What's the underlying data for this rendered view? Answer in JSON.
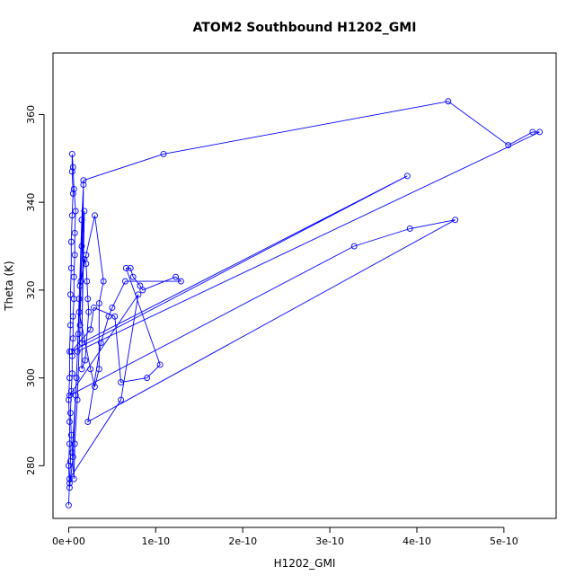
{
  "chart_data": {
    "type": "line",
    "title": "ATOM2 Southbound H1202_GMI",
    "xlabel": "H1202_GMI",
    "ylabel": "Theta (K)",
    "xlim": [
      -1.8e-11,
      5.6e-10
    ],
    "ylim": [
      268,
      374
    ],
    "x_ticks": [
      0,
      1e-10,
      2e-10,
      3e-10,
      4e-10,
      5e-10
    ],
    "x_tick_labels": [
      "0e+00",
      "1e-10",
      "2e-10",
      "3e-10",
      "4e-10",
      "5e-10"
    ],
    "y_ticks": [
      280,
      300,
      320,
      340,
      360
    ],
    "y_tick_labels": [
      "280",
      "300",
      "320",
      "340",
      "360"
    ],
    "grid": false,
    "series": [
      {
        "color": "#0000ff",
        "marker": "open-circle",
        "points": [
          [
            0,
            271
          ],
          [
            1e-12,
            276
          ],
          [
            2e-12,
            281
          ],
          [
            3e-12,
            287
          ],
          [
            2e-12,
            292
          ],
          [
            3e-12,
            297
          ],
          [
            4e-12,
            301
          ],
          [
            4e-12,
            305
          ],
          [
            5e-12,
            309
          ],
          [
            5e-12,
            314
          ],
          [
            6e-12,
            318
          ],
          [
            6e-12,
            323
          ],
          [
            7e-12,
            328
          ],
          [
            7e-12,
            333
          ],
          [
            8e-12,
            338
          ],
          [
            6e-12,
            343
          ],
          [
            5e-12,
            348
          ],
          [
            4e-12,
            351
          ],
          [
            4e-12,
            347
          ],
          [
            5e-12,
            342
          ],
          [
            4e-12,
            337
          ],
          [
            3e-12,
            331
          ],
          [
            3e-12,
            325
          ],
          [
            2e-12,
            319
          ],
          [
            2e-12,
            312
          ],
          [
            1e-12,
            306
          ],
          [
            1e-12,
            300
          ],
          [
            0,
            295
          ],
          [
            1e-12,
            290
          ],
          [
            1e-12,
            285
          ],
          [
            0,
            280
          ],
          [
            1e-12,
            275
          ],
          [
            5e-12,
            282
          ],
          [
            9e-12,
            300
          ],
          [
            1.2e-11,
            318
          ],
          [
            1.5e-11,
            336
          ],
          [
            1.7e-11,
            344
          ],
          [
            1.5e-11,
            330
          ],
          [
            1.3e-11,
            312
          ],
          [
            1e-11,
            295
          ],
          [
            7e-12,
            285
          ],
          [
            6e-12,
            277
          ],
          [
            4e-12,
            283
          ],
          [
            8e-12,
            296
          ],
          [
            1.1e-11,
            310
          ],
          [
            1.4e-11,
            322
          ],
          [
            1.8e-11,
            327
          ],
          [
            2e-11,
            326
          ],
          [
            2.1e-11,
            322
          ],
          [
            2.2e-11,
            318
          ],
          [
            2.3e-11,
            315
          ],
          [
            1.9e-11,
            304
          ],
          [
            1.5e-11,
            302
          ],
          [
            1.7e-11,
            345
          ],
          [
            1.09e-10,
            351
          ],
          [
            4.36e-10,
            363
          ],
          [
            5.05e-10,
            353
          ],
          [
            5.33e-10,
            356
          ],
          [
            5.41e-10,
            356
          ],
          [
            1e-11,
            306
          ],
          [
            1.2e-11,
            315
          ],
          [
            2.5e-11,
            302
          ],
          [
            3e-11,
            298
          ],
          [
            3.5e-11,
            302
          ],
          [
            3.5e-11,
            317
          ],
          [
            4e-11,
            322
          ],
          [
            3e-11,
            337
          ],
          [
            2e-11,
            328
          ],
          [
            1.3e-11,
            321
          ],
          [
            1.8e-11,
            338
          ],
          [
            1.5e-11,
            308
          ],
          [
            3.89e-10,
            346
          ],
          [
            3e-12,
            306
          ],
          [
            2.5e-11,
            311
          ],
          [
            2.9e-11,
            316
          ],
          [
            5.3e-11,
            314
          ],
          [
            6e-11,
            299
          ],
          [
            9e-11,
            300
          ],
          [
            1.05e-10,
            303
          ],
          [
            6.6e-11,
            325
          ],
          [
            7.1e-11,
            325
          ],
          [
            7.4e-11,
            323
          ],
          [
            8.2e-11,
            321
          ],
          [
            8.5e-11,
            320
          ],
          [
            1.23e-10,
            323
          ],
          [
            1.29e-10,
            322
          ],
          [
            6.5e-11,
            322
          ],
          [
            5e-11,
            316
          ],
          [
            4.6e-11,
            314
          ],
          [
            3.7e-11,
            308
          ],
          [
            2.2e-11,
            290
          ],
          [
            4.44e-10,
            336
          ],
          [
            3.92e-10,
            334
          ],
          [
            3.28e-10,
            330
          ],
          [
            1e-12,
            296
          ],
          [
            8e-11,
            319
          ],
          [
            6e-11,
            295
          ],
          [
            1e-12,
            277
          ]
        ]
      }
    ]
  }
}
